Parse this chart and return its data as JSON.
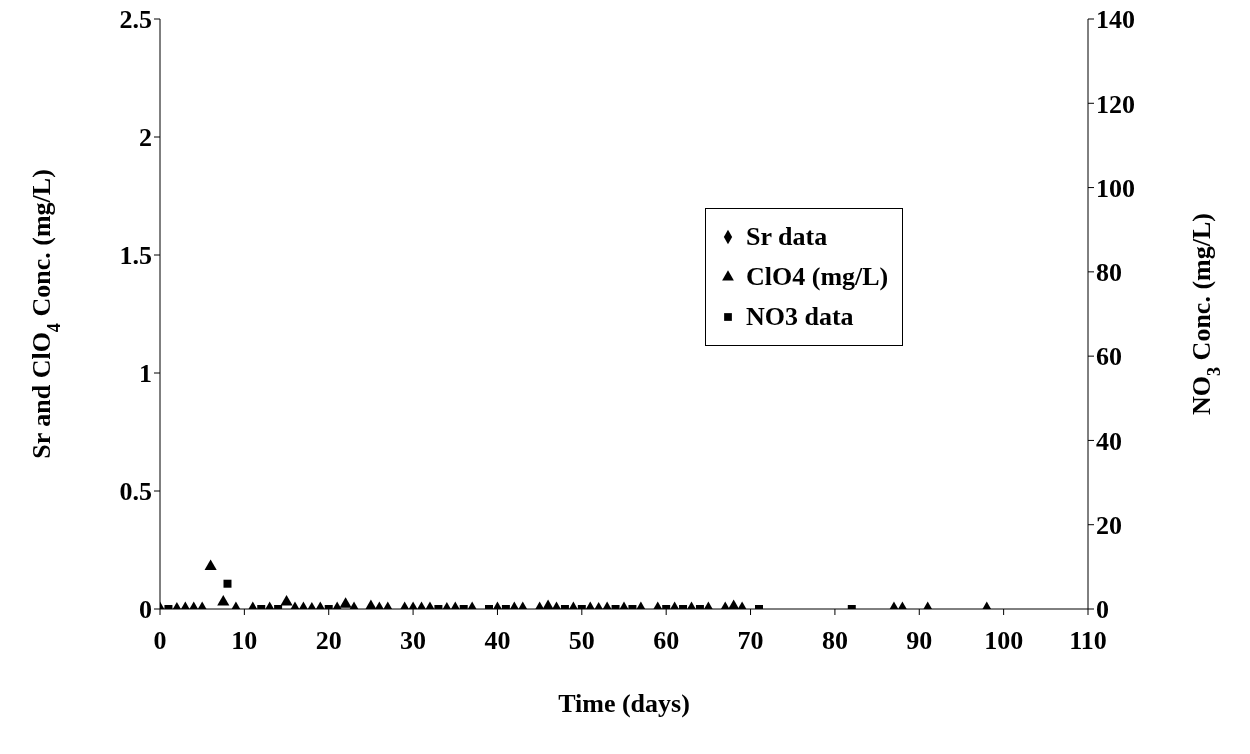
{
  "chart_data": {
    "type": "scatter",
    "xlabel": "Time (days)",
    "ylabel": "Sr  and ClO$_{4}$ Conc. (mg/L)",
    "y2label": "NO$_{3}$ Conc. (mg/L)",
    "xlim": [
      0,
      110
    ],
    "xticks": [
      0,
      10,
      20,
      30,
      40,
      50,
      60,
      70,
      80,
      90,
      100,
      110
    ],
    "ylim": [
      0,
      2.5
    ],
    "yticks": [
      0,
      0.5,
      1,
      1.5,
      2,
      2.5
    ],
    "y2lim": [
      0,
      140
    ],
    "y2ticks": [
      0,
      20,
      40,
      60,
      80,
      100,
      120,
      140
    ],
    "grid": false,
    "legend": "right",
    "series": [
      {
        "name": "Sr data",
        "color": "#000000",
        "marker": "diamond",
        "x": [
          0,
          3,
          4,
          5,
          9,
          11,
          13,
          16,
          17,
          19,
          21,
          23,
          26,
          27,
          29,
          30,
          31,
          32,
          35,
          37,
          40,
          42,
          43,
          45,
          47,
          49,
          51,
          53,
          55,
          57,
          59,
          61,
          63,
          65,
          67,
          69,
          87,
          88,
          91,
          98
        ],
        "values": [
          0,
          0,
          0,
          0,
          0,
          0,
          0,
          0,
          0,
          0,
          0,
          0,
          0,
          0,
          0,
          0,
          0,
          0,
          0,
          0,
          0,
          0,
          0,
          0,
          0,
          0,
          0,
          0,
          0,
          0,
          0,
          0,
          0,
          0,
          0,
          0,
          0,
          0,
          0,
          0
        ]
      },
      {
        "name": "ClO4 (mg/L)",
        "color": "#000000",
        "marker": "triangle",
        "x": [
          2,
          6,
          7.5,
          15,
          18,
          22,
          25,
          34,
          46,
          52,
          68
        ],
        "values": [
          0,
          0.18,
          0.03,
          0.03,
          0,
          0.02,
          0.01,
          0,
          0.01,
          0,
          0.01
        ]
      },
      {
        "name": "NO3 data",
        "color": "#000000",
        "marker": "square",
        "axis": "y2",
        "x": [
          1,
          8,
          12,
          14,
          20,
          33,
          36,
          39,
          41,
          48,
          50,
          54,
          56,
          60,
          62,
          64,
          71,
          82
        ],
        "values": [
          0,
          6,
          0,
          0,
          0,
          0,
          0,
          0,
          0,
          0,
          0,
          0,
          0,
          0,
          0,
          0,
          0,
          0
        ]
      }
    ]
  }
}
